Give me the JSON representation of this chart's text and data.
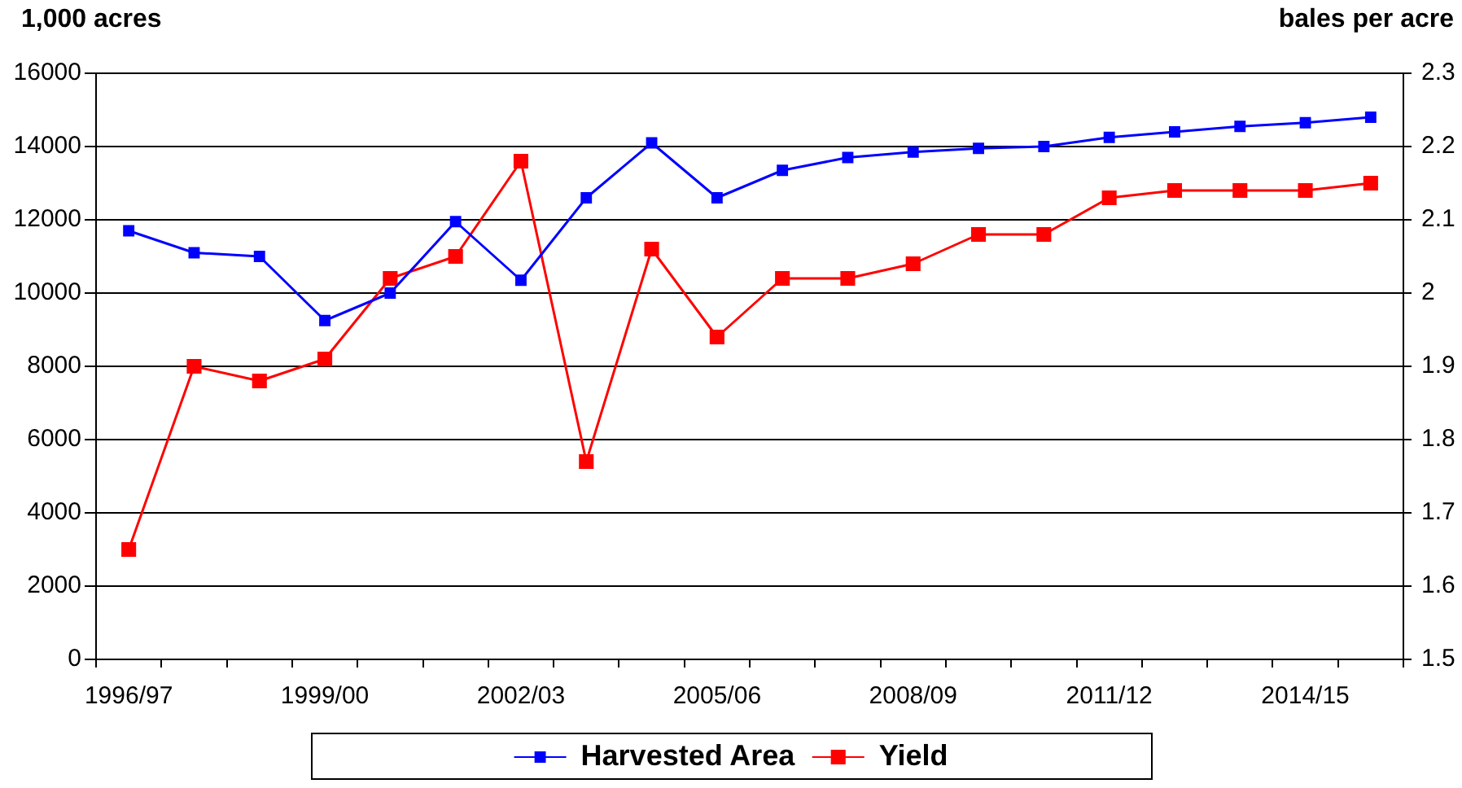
{
  "chart_data": {
    "type": "line",
    "ylabel": "1,000 acres",
    "y2label": "bales per acre",
    "categories": [
      "1996/97",
      null,
      null,
      "1999/00",
      null,
      null,
      "2002/03",
      null,
      null,
      "2005/06",
      null,
      null,
      "2008/09",
      null,
      null,
      "2011/12",
      null,
      null,
      "2014/15",
      null
    ],
    "series": [
      {
        "name": "Harvested Area",
        "color": "#0000ff",
        "values": [
          11700,
          11100,
          11000,
          9250,
          10000,
          11950,
          10350,
          12600,
          14100,
          12600,
          13350,
          13700,
          13850,
          13950,
          14000,
          14250,
          14400,
          14550,
          14650,
          14800
        ]
      },
      {
        "name": "Yield",
        "color": "#ff0000",
        "axis": "y2",
        "values": [
          1.65,
          1.9,
          1.88,
          1.91,
          2.02,
          2.05,
          2.18,
          1.77,
          2.06,
          1.94,
          2.02,
          2.02,
          2.04,
          2.08,
          2.08,
          2.13,
          2.14,
          2.14,
          2.14,
          2.15
        ]
      }
    ],
    "ylim": [
      0,
      16000
    ],
    "yticks": [
      0,
      2000,
      4000,
      6000,
      8000,
      10000,
      12000,
      14000,
      16000
    ],
    "y2lim": [
      1.5,
      2.3
    ],
    "y2ticks": [
      1.5,
      1.6,
      1.7,
      1.8,
      1.9,
      2,
      2.1,
      2.2,
      2.3
    ],
    "grid": "y",
    "legend": "bottom",
    "marker": "square",
    "line_style": "solid"
  }
}
